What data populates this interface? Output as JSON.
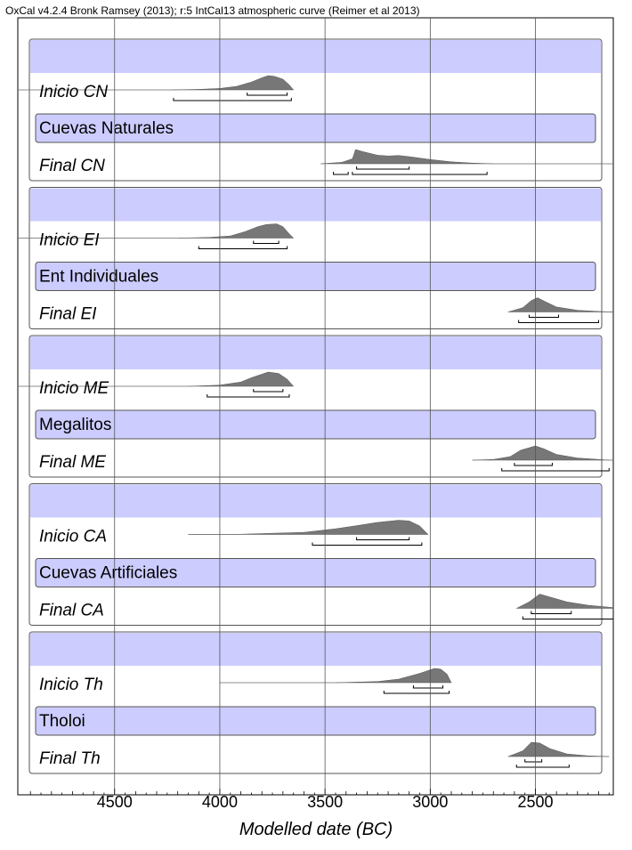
{
  "header": "OxCal v4.2.4 Bronk Ramsey (2013); r:5 IntCal13 atmospheric curve (Reimer et al 2013)",
  "chart_data": {
    "type": "oxcal-multiplot",
    "xlabel": "Modelled date (BC)",
    "x_ticks": [
      4500,
      4000,
      3500,
      3000,
      2500
    ],
    "xlim": [
      4960,
      2130
    ],
    "grid": true,
    "colors": {
      "phase_band": "#ccccff",
      "distribution": "#777777",
      "grid": "#555555"
    },
    "phases": [
      {
        "name": "Cuevas Naturales",
        "start": {
          "label": "Inicio CN",
          "dist": [
            [
              4230,
              0.0
            ],
            [
              4100,
              0.04
            ],
            [
              4000,
              0.1
            ],
            [
              3920,
              0.25
            ],
            [
              3850,
              0.55
            ],
            [
              3800,
              0.85
            ],
            [
              3770,
              1.0
            ],
            [
              3740,
              0.95
            ],
            [
              3700,
              0.75
            ],
            [
              3670,
              0.35
            ],
            [
              3650,
              0.0
            ]
          ],
          "tail": [
            4960,
            4230
          ],
          "hpd68": [
            3870,
            3680
          ],
          "hpd95": [
            4220,
            3660
          ]
        },
        "end": {
          "label": "Final CN",
          "dist": [
            [
              3520,
              0.0
            ],
            [
              3420,
              0.1
            ],
            [
              3370,
              0.35
            ],
            [
              3355,
              1.0
            ],
            [
              3320,
              0.85
            ],
            [
              3250,
              0.6
            ],
            [
              3200,
              0.55
            ],
            [
              3150,
              0.58
            ],
            [
              3100,
              0.5
            ],
            [
              3000,
              0.3
            ],
            [
              2900,
              0.14
            ],
            [
              2800,
              0.05
            ],
            [
              2700,
              0.0
            ]
          ],
          "tail": [
            2700,
            2130
          ],
          "hpd68": [
            3350,
            3100
          ],
          "hpd95a": [
            3460,
            3390
          ],
          "hpd95b": [
            3370,
            2730
          ]
        }
      },
      {
        "name": "Ent Individuales",
        "start": {
          "label": "Inicio EI",
          "dist": [
            [
              4200,
              0.0
            ],
            [
              4050,
              0.05
            ],
            [
              3950,
              0.15
            ],
            [
              3880,
              0.45
            ],
            [
              3820,
              0.8
            ],
            [
              3780,
              0.95
            ],
            [
              3730,
              1.0
            ],
            [
              3700,
              0.8
            ],
            [
              3670,
              0.3
            ],
            [
              3650,
              0.0
            ]
          ],
          "tail": [
            4960,
            4200
          ],
          "hpd68": [
            3840,
            3720
          ],
          "hpd95": [
            4100,
            3680
          ]
        },
        "end": {
          "label": "Final EI",
          "dist": [
            [
              2630,
              0.0
            ],
            [
              2560,
              0.3
            ],
            [
              2520,
              0.8
            ],
            [
              2490,
              1.0
            ],
            [
              2450,
              0.7
            ],
            [
              2400,
              0.35
            ],
            [
              2300,
              0.12
            ],
            [
              2200,
              0.04
            ],
            [
              2130,
              0.0
            ]
          ],
          "tail": [
            2130,
            2130
          ],
          "hpd68": [
            2530,
            2390
          ],
          "hpd95": [
            2580,
            2200
          ]
        }
      },
      {
        "name": "Megalitos",
        "start": {
          "label": "Inicio ME",
          "dist": [
            [
              4150,
              0.0
            ],
            [
              4000,
              0.08
            ],
            [
              3900,
              0.3
            ],
            [
              3850,
              0.6
            ],
            [
              3800,
              0.85
            ],
            [
              3770,
              1.0
            ],
            [
              3720,
              0.9
            ],
            [
              3680,
              0.5
            ],
            [
              3650,
              0.0
            ]
          ],
          "tail": [
            4960,
            4150
          ],
          "hpd68": [
            3840,
            3700
          ],
          "hpd95": [
            4060,
            3670
          ]
        },
        "end": {
          "label": "Final ME",
          "dist": [
            [
              2800,
              0.0
            ],
            [
              2700,
              0.05
            ],
            [
              2620,
              0.25
            ],
            [
              2570,
              0.7
            ],
            [
              2500,
              1.0
            ],
            [
              2460,
              0.8
            ],
            [
              2400,
              0.4
            ],
            [
              2300,
              0.15
            ],
            [
              2200,
              0.05
            ],
            [
              2150,
              0.0
            ]
          ],
          "tail": [
            2150,
            2130
          ],
          "hpd68": [
            2600,
            2420
          ],
          "hpd95": [
            2660,
            2150
          ]
        }
      },
      {
        "name": "Cuevas Artificiales",
        "start": {
          "label": "Inicio CA",
          "dist": [
            [
              4150,
              0.0
            ],
            [
              3900,
              0.02
            ],
            [
              3600,
              0.15
            ],
            [
              3450,
              0.4
            ],
            [
              3350,
              0.62
            ],
            [
              3250,
              0.85
            ],
            [
              3150,
              1.0
            ],
            [
              3100,
              0.95
            ],
            [
              3050,
              0.6
            ],
            [
              3020,
              0.15
            ],
            [
              3010,
              0.0
            ]
          ],
          "tail": [
            4150,
            4150
          ],
          "hpd68": [
            3350,
            3100
          ],
          "hpd95": [
            3560,
            3040
          ]
        },
        "end": {
          "label": "Final CA",
          "dist": [
            [
              2590,
              0.0
            ],
            [
              2530,
              0.45
            ],
            [
              2480,
              1.0
            ],
            [
              2420,
              0.75
            ],
            [
              2350,
              0.45
            ],
            [
              2250,
              0.22
            ],
            [
              2150,
              0.08
            ],
            [
              2130,
              0.05
            ]
          ],
          "tail": [
            2130,
            2130
          ],
          "hpd68": [
            2520,
            2330
          ],
          "hpd95": [
            2560,
            2130
          ]
        }
      },
      {
        "name": "Tholoi",
        "start": {
          "label": "Inicio Th",
          "dist": [
            [
              3450,
              0.0
            ],
            [
              3250,
              0.08
            ],
            [
              3150,
              0.25
            ],
            [
              3050,
              0.65
            ],
            [
              2980,
              1.0
            ],
            [
              2950,
              0.95
            ],
            [
              2920,
              0.6
            ],
            [
              2900,
              0.0
            ]
          ],
          "tail": [
            4000,
            3450
          ],
          "hpd68": [
            3080,
            2940
          ],
          "hpd95": [
            3220,
            2910
          ]
        },
        "end": {
          "label": "Final Th",
          "dist": [
            [
              2630,
              0.0
            ],
            [
              2560,
              0.4
            ],
            [
              2520,
              1.0
            ],
            [
              2480,
              0.95
            ],
            [
              2430,
              0.55
            ],
            [
              2350,
              0.18
            ],
            [
              2250,
              0.05
            ],
            [
              2150,
              0.0
            ]
          ],
          "tail": [
            2130,
            2130
          ],
          "hpd68": [
            2550,
            2470
          ],
          "hpd95": [
            2590,
            2340
          ]
        }
      }
    ]
  }
}
